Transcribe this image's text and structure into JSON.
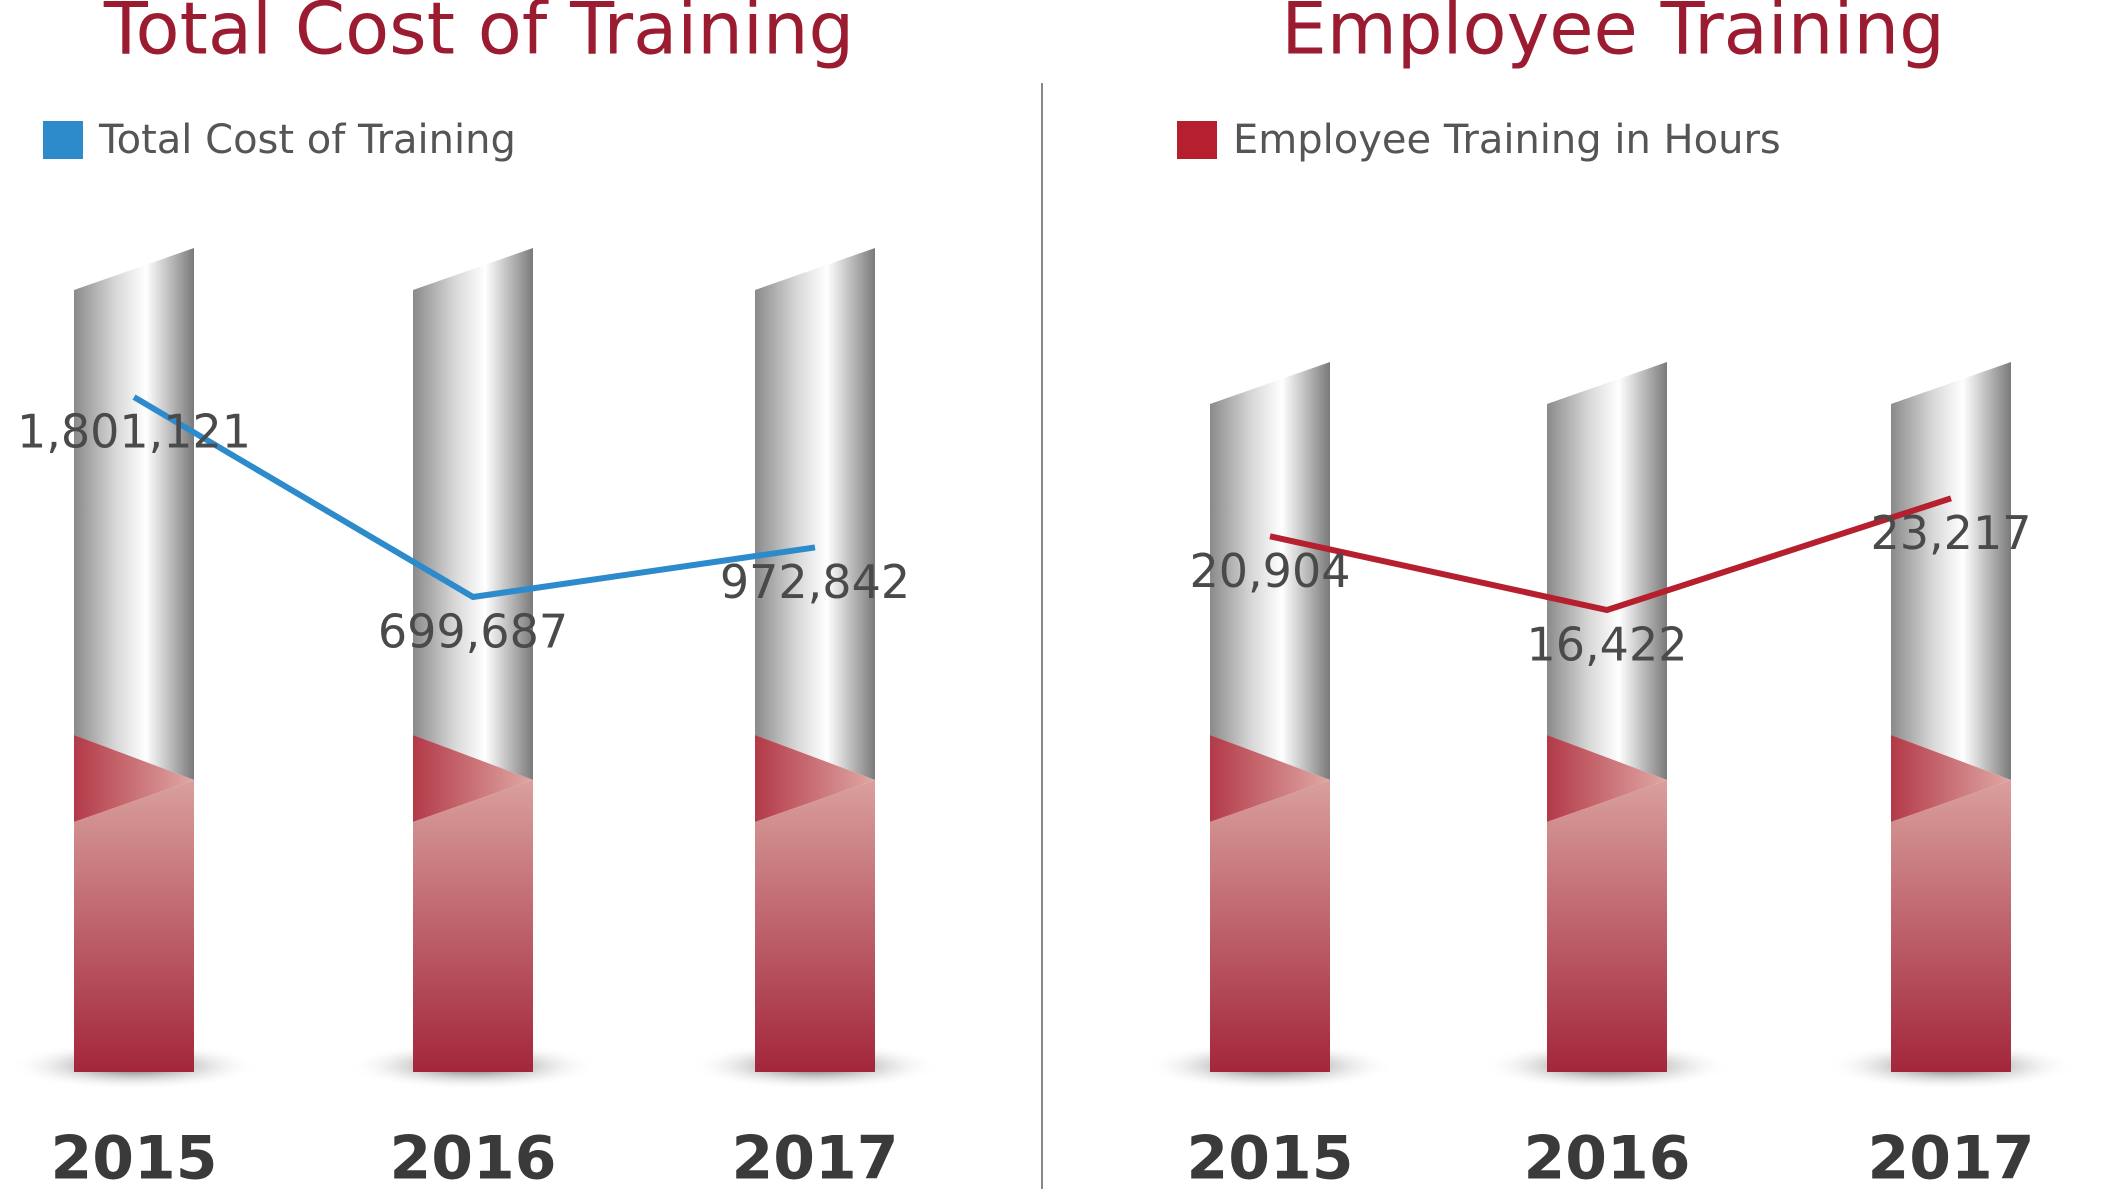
{
  "chart_data": [
    {
      "type": "line",
      "title": "Total Cost of Training",
      "categories": [
        "2015",
        "2016",
        "2017"
      ],
      "series": [
        {
          "name": "Total Cost of Training",
          "color": "#2e8bcb",
          "values": [
            1801121,
            699687,
            972842
          ],
          "value_labels": [
            "1,801,121",
            "699,687",
            "972,842"
          ]
        }
      ],
      "ylim": [
        0,
        2000000
      ]
    },
    {
      "type": "line",
      "title": "Employee Training",
      "categories": [
        "2015",
        "2016",
        "2017"
      ],
      "series": [
        {
          "name": "Employee Training in Hours",
          "color": "#b51f2e",
          "values": [
            20904,
            16422,
            23217
          ],
          "value_labels": [
            "20,904",
            "16,422",
            "23,217"
          ]
        }
      ],
      "ylim": [
        0,
        25000
      ]
    }
  ]
}
